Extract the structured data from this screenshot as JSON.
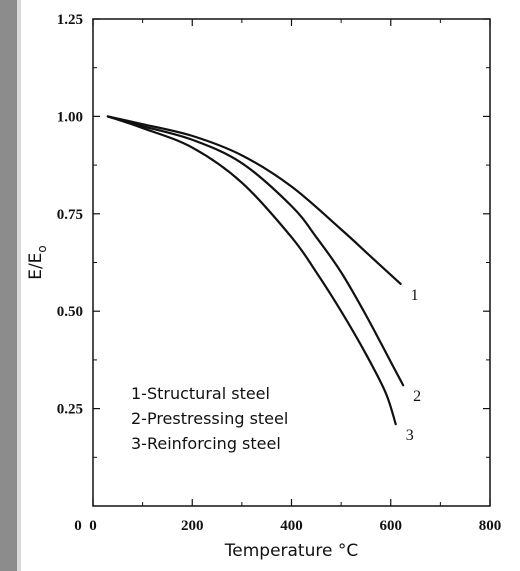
{
  "chart_data": {
    "type": "line",
    "title": "",
    "xlabel": "Temperature °C",
    "ylabel": "E/E₀",
    "ylabel_main": "E/E",
    "ylabel_sub": "o",
    "xlim": [
      0,
      800
    ],
    "ylim": [
      0,
      1.25
    ],
    "xticks": [
      0,
      200,
      400,
      600,
      800
    ],
    "xtick_labels": [
      "0",
      "200",
      "400",
      "600",
      "800"
    ],
    "yticks": [
      0.25,
      0.5,
      0.75,
      1.0,
      1.25
    ],
    "ytick_labels": [
      "0.25",
      "0.50",
      "0.75",
      "1.00",
      "1.25"
    ],
    "grid": false,
    "series": [
      {
        "name": "1",
        "x": [
          30,
          100,
          200,
          300,
          400,
          500,
          560,
          620
        ],
        "y": [
          1.0,
          0.98,
          0.95,
          0.9,
          0.82,
          0.71,
          0.64,
          0.57
        ]
      },
      {
        "name": "2",
        "x": [
          30,
          100,
          200,
          300,
          400,
          450,
          500,
          550,
          600,
          625
        ],
        "y": [
          1.0,
          0.975,
          0.94,
          0.88,
          0.77,
          0.69,
          0.6,
          0.49,
          0.37,
          0.31
        ]
      },
      {
        "name": "3",
        "x": [
          30,
          100,
          200,
          300,
          400,
          450,
          500,
          550,
          590,
          610
        ],
        "y": [
          1.0,
          0.97,
          0.92,
          0.83,
          0.69,
          0.6,
          0.5,
          0.39,
          0.29,
          0.21
        ]
      }
    ],
    "curve_labels": [
      "1",
      "2",
      "3"
    ],
    "legend": {
      "placement": "lower-left",
      "items": [
        "1-Structural steel",
        "2-Prestressing steel",
        "3-Reinforcing steel"
      ]
    }
  }
}
